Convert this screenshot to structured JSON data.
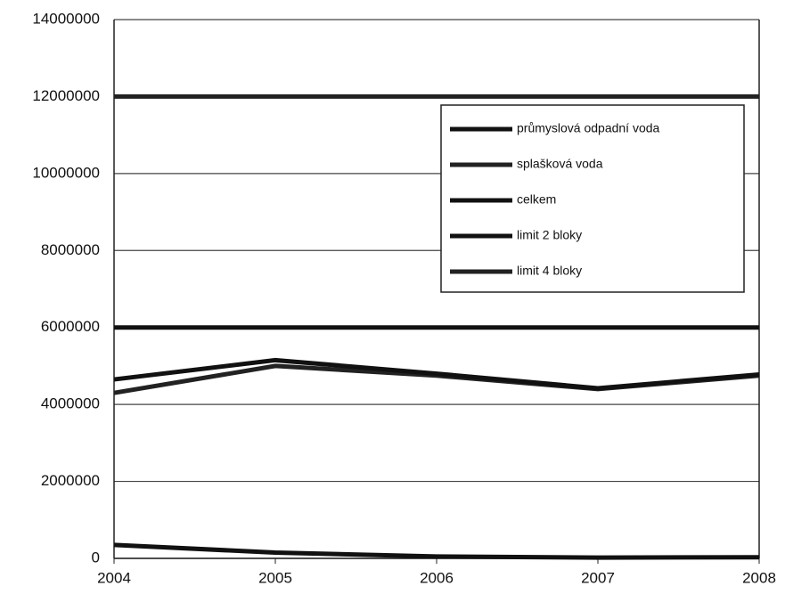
{
  "chart_data": {
    "type": "line",
    "x": [
      2004,
      2005,
      2006,
      2007,
      2008
    ],
    "xlim": [
      2004,
      2008
    ],
    "xticks": [
      2004,
      2005,
      2006,
      2007,
      2008
    ],
    "ylim": [
      0,
      14000000
    ],
    "yticks": [
      0,
      2000000,
      4000000,
      6000000,
      8000000,
      10000000,
      12000000,
      14000000
    ],
    "grid": true,
    "legend": "upper right",
    "series": [
      {
        "name": "průmyslová odpadní voda",
        "color": "#111111",
        "values": [
          350000,
          150000,
          50000,
          20000,
          30000
        ]
      },
      {
        "name": "splašková voda",
        "color": "#222222",
        "values": [
          4300000,
          5000000,
          4750000,
          4400000,
          4750000
        ]
      },
      {
        "name": "celkem",
        "color": "#111111",
        "values": [
          4650000,
          5150000,
          4800000,
          4420000,
          4780000
        ]
      },
      {
        "name": "limit 2 bloky",
        "color": "#111111",
        "values": [
          6000000,
          6000000,
          6000000,
          6000000,
          6000000
        ]
      },
      {
        "name": "limit 4 bloky",
        "color": "#222222",
        "values": [
          12000000,
          12000000,
          12000000,
          12000000,
          12000000
        ]
      }
    ]
  }
}
